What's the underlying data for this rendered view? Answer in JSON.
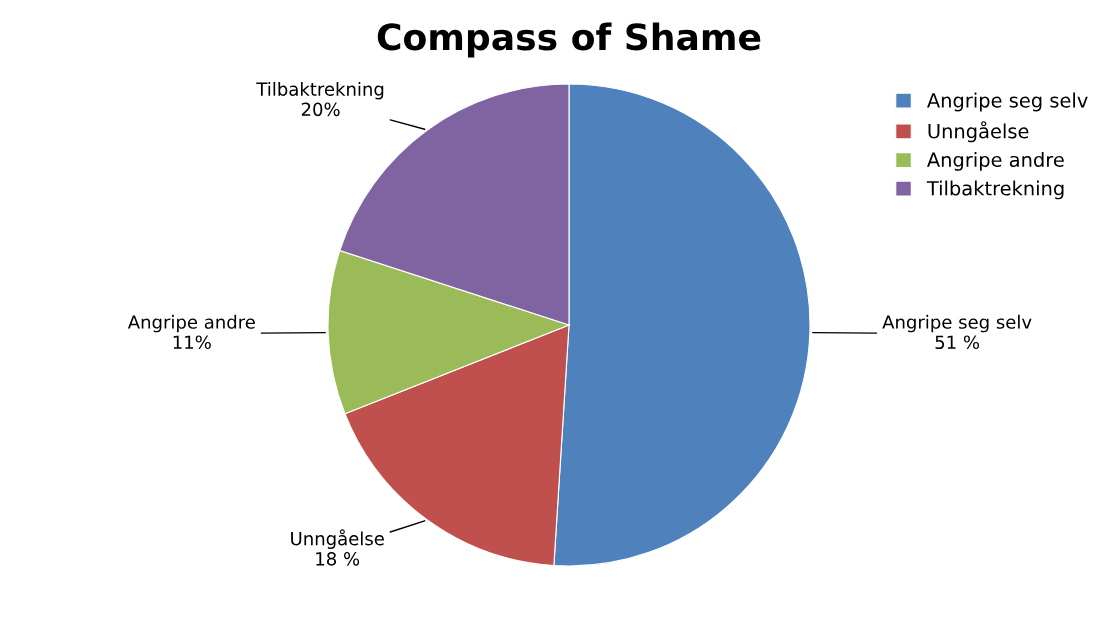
{
  "chart_data": {
    "type": "pie",
    "title": "Compass of Shame",
    "categories": [
      "Angripe seg selv",
      "Unngåelse",
      "Angripe andre",
      "Tilbaktrekning"
    ],
    "values": [
      51,
      18,
      11,
      20
    ],
    "colors": [
      "#4f81bd",
      "#c0504d",
      "#9bbb59",
      "#8064a2"
    ],
    "value_labels": [
      "51 %",
      "18 %",
      "11%",
      "20%"
    ],
    "legend": "right"
  }
}
